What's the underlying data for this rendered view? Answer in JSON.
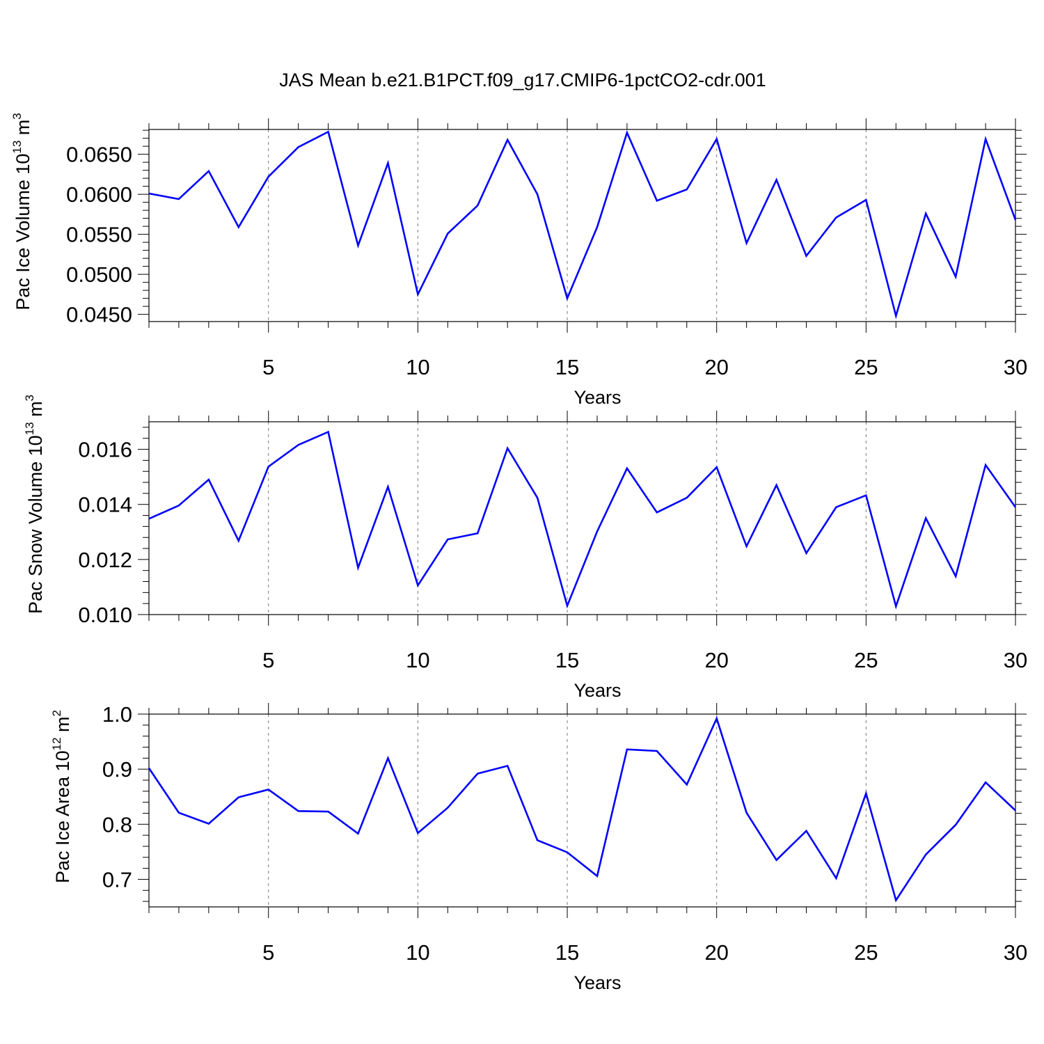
{
  "title": "JAS Mean b.e21.B1PCT.f09_g17.CMIP6-1pctCO2-cdr.001",
  "colors": {
    "line": "#0000ff",
    "axis": "#000000",
    "grid": "#777777"
  },
  "chart_data": [
    {
      "type": "line",
      "xlabel": "Years",
      "ylabel": {
        "prefix": "Pac Ice Volume 10",
        "exp": "13",
        "mid": " m",
        "unit_exp": "3"
      },
      "xlim": [
        1,
        30
      ],
      "ylim": [
        0.0441,
        0.0681
      ],
      "xticks": [
        5,
        10,
        15,
        20,
        25,
        30
      ],
      "xtick_labels": [
        "5",
        "10",
        "15",
        "20",
        "25",
        "30"
      ],
      "yticks": [
        0.045,
        0.05,
        0.055,
        0.06,
        0.065
      ],
      "ytick_labels": [
        "0.0450",
        "0.0500",
        "0.0550",
        "0.0600",
        "0.0650"
      ],
      "grid": "vertical dashed at major x ticks",
      "x": [
        1,
        2,
        3,
        4,
        5,
        6,
        7,
        8,
        9,
        10,
        11,
        12,
        13,
        14,
        15,
        16,
        17,
        18,
        19,
        20,
        21,
        22,
        23,
        24,
        25,
        26,
        27,
        28,
        29,
        30
      ],
      "values": [
        0.0601,
        0.0594,
        0.0629,
        0.0559,
        0.0622,
        0.0659,
        0.0678,
        0.0536,
        0.0639,
        0.0475,
        0.0551,
        0.0586,
        0.0668,
        0.06,
        0.047,
        0.0559,
        0.0677,
        0.0592,
        0.0606,
        0.0669,
        0.0539,
        0.0618,
        0.0523,
        0.0571,
        0.0593,
        0.0448,
        0.0576,
        0.0497,
        0.0669,
        0.0568
      ]
    },
    {
      "type": "line",
      "xlabel": "Years",
      "ylabel": {
        "prefix": "Pac Snow Volume 10",
        "exp": "13",
        "mid": " m",
        "unit_exp": "3"
      },
      "xlim": [
        1,
        30
      ],
      "ylim": [
        0.01,
        0.017
      ],
      "xticks": [
        5,
        10,
        15,
        20,
        25,
        30
      ],
      "xtick_labels": [
        "5",
        "10",
        "15",
        "20",
        "25",
        "30"
      ],
      "yticks": [
        0.01,
        0.012,
        0.014,
        0.016
      ],
      "ytick_labels": [
        "0.010",
        "0.012",
        "0.014",
        "0.016"
      ],
      "grid": "vertical dashed at major x ticks",
      "x": [
        1,
        2,
        3,
        4,
        5,
        6,
        7,
        8,
        9,
        10,
        11,
        12,
        13,
        14,
        15,
        16,
        17,
        18,
        19,
        20,
        21,
        22,
        23,
        24,
        25,
        26,
        27,
        28,
        29,
        30
      ],
      "values": [
        0.01348,
        0.01396,
        0.0149,
        0.01268,
        0.01537,
        0.01616,
        0.01663,
        0.0117,
        0.01464,
        0.01106,
        0.01273,
        0.01295,
        0.01604,
        0.01424,
        0.01032,
        0.01302,
        0.01531,
        0.01371,
        0.01424,
        0.01535,
        0.01248,
        0.0147,
        0.01223,
        0.0139,
        0.01433,
        0.0103,
        0.0135,
        0.01139,
        0.01543,
        0.0139
      ]
    },
    {
      "type": "line",
      "xlabel": "Years",
      "ylabel": {
        "prefix": "Pac Ice Area 10",
        "exp": "12",
        "mid": " m",
        "unit_exp": "2"
      },
      "xlim": [
        1,
        30
      ],
      "ylim": [
        0.65,
        1.0
      ],
      "xticks": [
        5,
        10,
        15,
        20,
        25,
        30
      ],
      "xtick_labels": [
        "5",
        "10",
        "15",
        "20",
        "25",
        "30"
      ],
      "yticks": [
        0.7,
        0.8,
        0.9,
        1.0
      ],
      "ytick_labels": [
        "0.7",
        "0.8",
        "0.9",
        "1.0"
      ],
      "grid": "vertical dashed at major x ticks",
      "x": [
        1,
        2,
        3,
        4,
        5,
        6,
        7,
        8,
        9,
        10,
        11,
        12,
        13,
        14,
        15,
        16,
        17,
        18,
        19,
        20,
        21,
        22,
        23,
        24,
        25,
        26,
        27,
        28,
        29,
        30
      ],
      "values": [
        0.902,
        0.821,
        0.801,
        0.849,
        0.863,
        0.824,
        0.823,
        0.783,
        0.92,
        0.784,
        0.83,
        0.892,
        0.906,
        0.771,
        0.749,
        0.706,
        0.936,
        0.933,
        0.872,
        0.992,
        0.821,
        0.735,
        0.788,
        0.702,
        0.856,
        0.662,
        0.745,
        0.799,
        0.876,
        0.825
      ]
    }
  ]
}
